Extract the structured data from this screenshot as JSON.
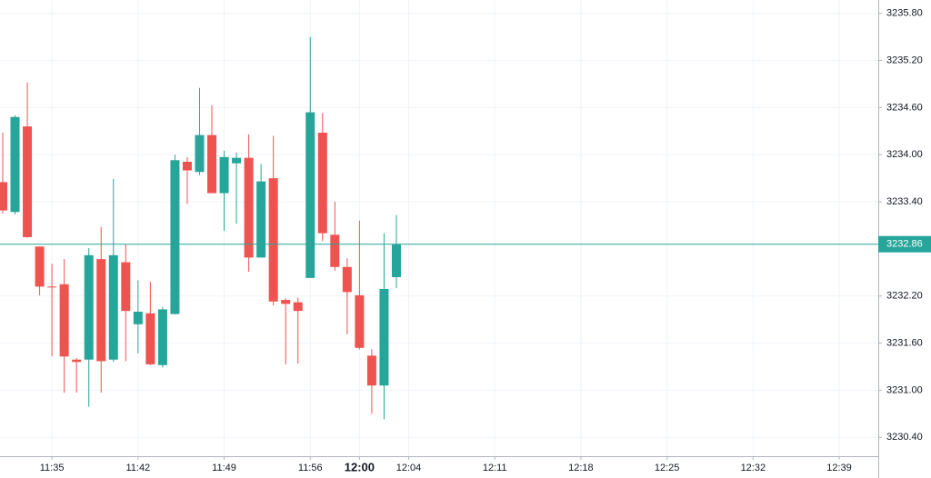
{
  "chart_data": {
    "type": "candlestick",
    "x": [
      "11:31",
      "11:32",
      "11:33",
      "11:34",
      "11:35",
      "11:36",
      "11:37",
      "11:38",
      "11:39",
      "11:40",
      "11:41",
      "11:42",
      "11:43",
      "11:44",
      "11:45",
      "11:46",
      "11:47",
      "11:48",
      "11:49",
      "11:50",
      "11:51",
      "11:52",
      "11:53",
      "11:54",
      "11:55",
      "11:56",
      "11:57",
      "11:58",
      "11:59",
      "12:00",
      "12:01",
      "12:02",
      "12:03"
    ],
    "open": [
      3233.65,
      3233.27,
      3234.36,
      3232.83,
      3232.32,
      3232.35,
      3231.39,
      3231.39,
      3232.67,
      3231.39,
      3232.63,
      3231.84,
      3231.98,
      3231.32,
      3231.97,
      3233.91,
      3233.78,
      3234.25,
      3233.51,
      3233.89,
      3233.96,
      3232.69,
      3233.7,
      3232.15,
      3232.12,
      3232.43,
      3234.28,
      3232.98,
      3232.57,
      3232.21,
      3231.44,
      3231.06,
      3232.44
    ],
    "high": [
      3234.28,
      3234.5,
      3234.92,
      3232.83,
      3232.61,
      3232.67,
      3231.41,
      3232.81,
      3233.08,
      3233.69,
      3232.86,
      3232.4,
      3232.38,
      3232.06,
      3234.0,
      3233.97,
      3234.85,
      3234.63,
      3234.05,
      3234.03,
      3234.26,
      3233.88,
      3234.24,
      3232.17,
      3232.18,
      3235.5,
      3234.53,
      3233.4,
      3232.68,
      3233.16,
      3231.52,
      3233.0,
      3233.23
    ],
    "low": [
      3233.25,
      3233.24,
      3232.94,
      3232.21,
      3231.43,
      3230.97,
      3230.97,
      3230.79,
      3230.97,
      3231.36,
      3231.37,
      3231.47,
      3231.32,
      3231.29,
      3231.97,
      3233.37,
      3233.74,
      3233.51,
      3233.03,
      3233.12,
      3232.51,
      3232.69,
      3232.08,
      3231.33,
      3231.34,
      3232.43,
      3232.9,
      3232.52,
      3231.71,
      3231.52,
      3230.7,
      3230.63,
      3232.3
    ],
    "close": [
      3233.29,
      3234.48,
      3232.95,
      3232.32,
      3232.31,
      3231.43,
      3231.36,
      3232.72,
      3231.37,
      3232.72,
      3232.01,
      3232.0,
      3231.33,
      3232.03,
      3233.93,
      3233.8,
      3234.25,
      3233.51,
      3233.97,
      3233.96,
      3232.69,
      3233.66,
      3232.13,
      3232.1,
      3232.01,
      3234.54,
      3233.0,
      3232.57,
      3232.25,
      3231.54,
      3231.06,
      3232.29,
      3232.86
    ],
    "up_color": "#26a69a",
    "down_color": "#ef5350",
    "ylim": [
      3230.16,
      3235.97
    ],
    "yticks": [
      {
        "value": 3230.4,
        "label": "3230.40"
      },
      {
        "value": 3231.0,
        "label": "3231.00"
      },
      {
        "value": 3231.6,
        "label": "3231.60"
      },
      {
        "value": 3232.2,
        "label": "3232.20"
      },
      {
        "value": 3233.4,
        "label": "3233.40"
      },
      {
        "value": 3234.0,
        "label": "3234.00"
      },
      {
        "value": 3234.6,
        "label": "3234.60"
      },
      {
        "value": 3235.2,
        "label": "3235.20"
      },
      {
        "value": 3235.8,
        "label": "3235.80"
      }
    ],
    "xticks": [
      "11:35",
      "11:42",
      "11:49",
      "11:56",
      "12:00",
      "12:04",
      "12:11",
      "12:18",
      "12:25",
      "12:32",
      "12:39"
    ],
    "bold_xtick": 4,
    "last_price": 3232.86,
    "grid": true
  }
}
